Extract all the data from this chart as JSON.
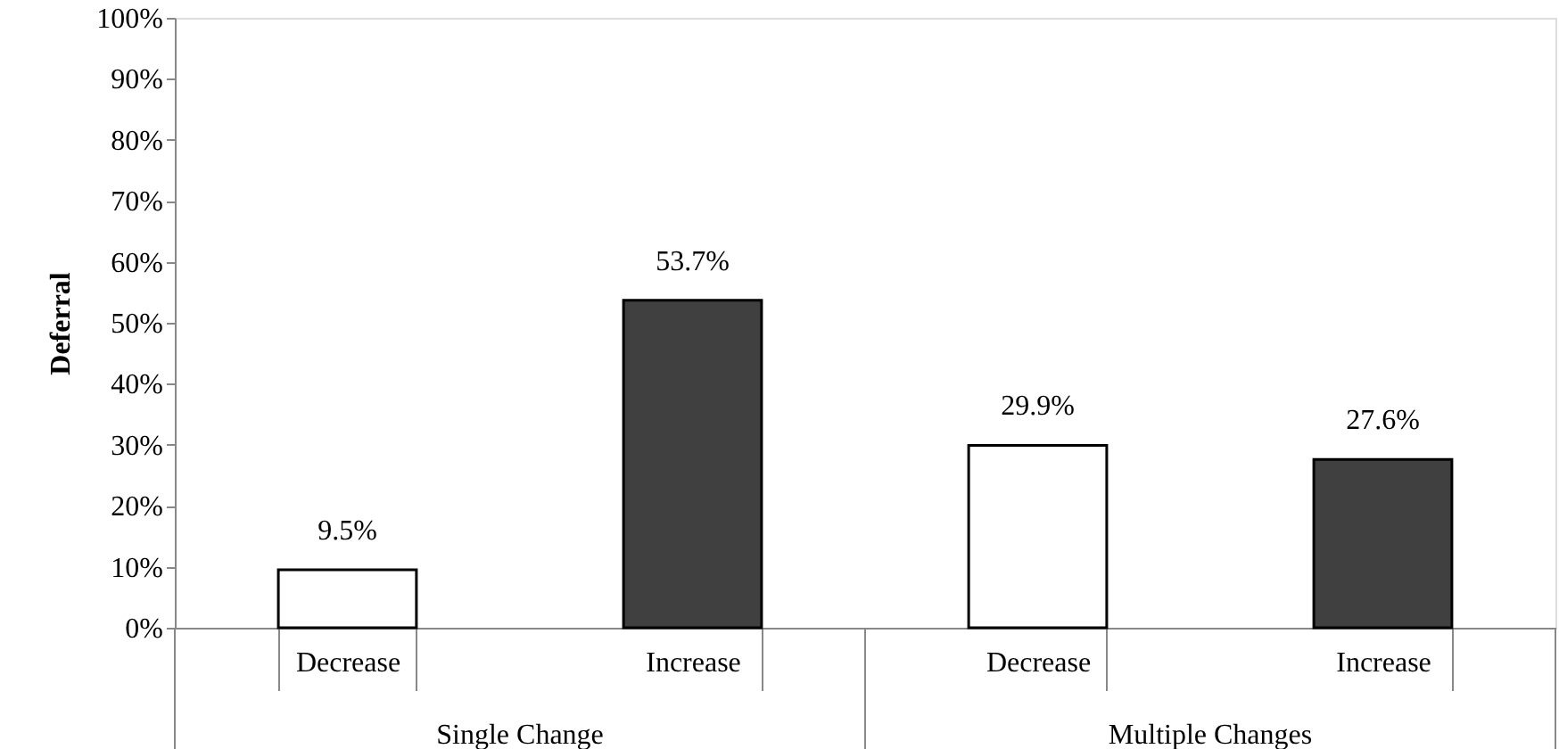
{
  "chart_data": {
    "type": "bar",
    "ylabel": "Deferral",
    "categories": [
      "Decrease",
      "Increase",
      "Decrease",
      "Increase"
    ],
    "values": [
      9.5,
      53.7,
      29.9,
      27.6
    ],
    "colors": [
      "#ffffff",
      "#404040",
      "#ffffff",
      "#404040"
    ],
    "value_labels": [
      "9.5%",
      "53.7%",
      "29.9%",
      "27.6%"
    ],
    "annotations": [
      "Single Change",
      "Multiple Changes"
    ],
    "ylim": [
      0,
      100
    ],
    "yticks": [
      {
        "value": 0,
        "label": "0%"
      },
      {
        "value": 10,
        "label": "10%"
      },
      {
        "value": 20,
        "label": "20%"
      },
      {
        "value": 30,
        "label": "30%"
      },
      {
        "value": 40,
        "label": "40%"
      },
      {
        "value": 50,
        "label": "50%"
      },
      {
        "value": 60,
        "label": "60%"
      },
      {
        "value": 70,
        "label": "70%"
      },
      {
        "value": 80,
        "label": "80%"
      },
      {
        "value": 90,
        "label": "90%"
      },
      {
        "value": 100,
        "label": "100%"
      }
    ],
    "grid": false
  }
}
